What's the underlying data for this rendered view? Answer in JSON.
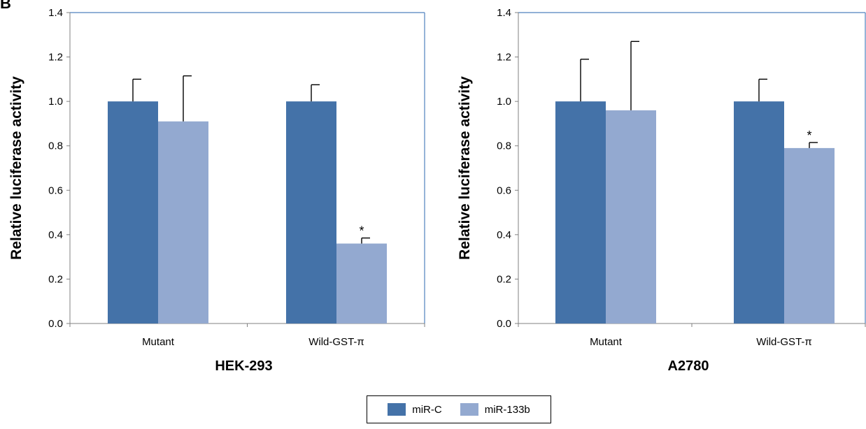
{
  "figure": {
    "panel_letter": "B"
  },
  "colors": {
    "miR-C": "#4472a8",
    "miR-133b": "#93a9d0",
    "frame": "#4f81bd",
    "error_bar": "#000000"
  },
  "legend": {
    "items": [
      "miR-C",
      "miR-133b"
    ]
  },
  "chart_data": [
    {
      "type": "bar",
      "title": "HEK-293",
      "xlabel": "HEK-293",
      "ylabel": "Relative luciferase activity",
      "categories": [
        "Mutant",
        "Wild-GST-π"
      ],
      "ylim": [
        0,
        1.4
      ],
      "yticks": [
        "0.0",
        "0.2",
        "0.4",
        "0.6",
        "0.8",
        "1.0",
        "1.2",
        "1.4"
      ],
      "grid": false,
      "legend_position": "bottom",
      "series": [
        {
          "name": "miR-C",
          "values": [
            1.0,
            1.0
          ],
          "error": [
            0.1,
            0.075
          ],
          "significance": [
            "",
            ""
          ]
        },
        {
          "name": "miR-133b",
          "values": [
            0.91,
            0.36
          ],
          "error": [
            0.205,
            0.025
          ],
          "significance": [
            "",
            "*"
          ]
        }
      ]
    },
    {
      "type": "bar",
      "title": "A2780",
      "xlabel": "A2780",
      "ylabel": "Relative luciferase activity",
      "categories": [
        "Mutant",
        "Wild-GST-π"
      ],
      "ylim": [
        0,
        1.4
      ],
      "yticks": [
        "0.0",
        "0.2",
        "0.4",
        "0.6",
        "0.8",
        "1.0",
        "1.2",
        "1.4"
      ],
      "grid": false,
      "legend_position": "bottom",
      "series": [
        {
          "name": "miR-C",
          "values": [
            1.0,
            1.0
          ],
          "error": [
            0.19,
            0.1
          ],
          "significance": [
            "",
            ""
          ]
        },
        {
          "name": "miR-133b",
          "values": [
            0.96,
            0.79
          ],
          "error": [
            0.31,
            0.025
          ],
          "significance": [
            "",
            "*"
          ]
        }
      ]
    }
  ]
}
